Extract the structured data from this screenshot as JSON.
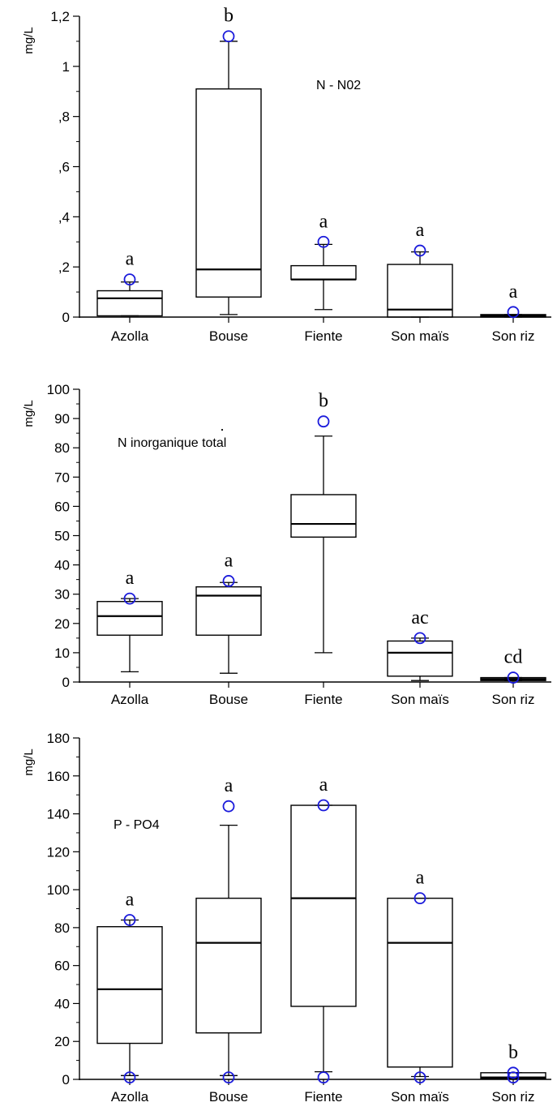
{
  "accent_color": "#1a1adb",
  "chart_data": [
    {
      "type": "box",
      "title": "N - N02",
      "ylabel": "mg/L",
      "ylim": [
        0,
        1.2
      ],
      "yticks": [
        0,
        0.2,
        0.4,
        0.6,
        0.8,
        1,
        1.2
      ],
      "ytick_labels": [
        "0",
        ",2",
        ",4",
        ",6",
        ",8",
        "1",
        "1,2"
      ],
      "categories": [
        "Azolla",
        "Bouse",
        "Fiente",
        "Son maïs",
        "Son riz"
      ],
      "boxes": [
        {
          "q1": 0.005,
          "median": 0.075,
          "q3": 0.105,
          "whisker_low": 0.005,
          "whisker_high": 0.14,
          "outliers": [
            0.15
          ],
          "group": "a"
        },
        {
          "q1": 0.08,
          "median": 0.19,
          "q3": 0.91,
          "whisker_low": 0.01,
          "whisker_high": 1.1,
          "outliers": [
            1.12
          ],
          "group": "b"
        },
        {
          "q1": 0.15,
          "median": 0.15,
          "q3": 0.205,
          "whisker_low": 0.03,
          "whisker_high": 0.29,
          "outliers": [
            0.3
          ],
          "group": "a"
        },
        {
          "q1": 0.0,
          "median": 0.03,
          "q3": 0.21,
          "whisker_low": 0.0,
          "whisker_high": 0.26,
          "outliers": [
            0.265
          ],
          "group": "a"
        },
        {
          "q1": 0.0,
          "median": 0.005,
          "q3": 0.01,
          "whisker_low": 0.0,
          "whisker_high": 0.01,
          "outliers": [
            0.02
          ],
          "group": "a"
        }
      ]
    },
    {
      "type": "box",
      "title": "N inorganique total",
      "ylabel": "mg/L",
      "ylim": [
        0,
        100
      ],
      "yticks": [
        0,
        10,
        20,
        30,
        40,
        50,
        60,
        70,
        80,
        90,
        100
      ],
      "ytick_labels": [
        "0",
        "10",
        "20",
        "30",
        "40",
        "50",
        "60",
        "70",
        "80",
        "90",
        "100"
      ],
      "categories": [
        "Azolla",
        "Bouse",
        "Fiente",
        "Son maïs",
        "Son riz"
      ],
      "boxes": [
        {
          "q1": 16,
          "median": 22.5,
          "q3": 27.5,
          "whisker_low": 3.5,
          "whisker_high": 28.5,
          "outliers": [
            28.5
          ],
          "group": "a"
        },
        {
          "q1": 16,
          "median": 29.5,
          "q3": 32.5,
          "whisker_low": 3,
          "whisker_high": 34,
          "outliers": [
            34.5
          ],
          "group": "a"
        },
        {
          "q1": 49.5,
          "median": 54,
          "q3": 64,
          "whisker_low": 10,
          "whisker_high": 84,
          "outliers": [
            89
          ],
          "group": "b"
        },
        {
          "q1": 2,
          "median": 10,
          "q3": 14,
          "whisker_low": 0.5,
          "whisker_high": 15,
          "outliers": [
            15
          ],
          "group": "ac"
        },
        {
          "q1": 0.5,
          "median": 1,
          "q3": 1.5,
          "whisker_low": 0.5,
          "whisker_high": 1.5,
          "outliers": [
            1.5
          ],
          "group": "cd"
        }
      ]
    },
    {
      "type": "box",
      "title": "P - PO4",
      "ylabel": "mg/L",
      "ylim": [
        0,
        180
      ],
      "yticks": [
        0,
        20,
        40,
        60,
        80,
        100,
        120,
        140,
        160,
        180
      ],
      "ytick_labels": [
        "0",
        "20",
        "40",
        "60",
        "80",
        "100",
        "120",
        "140",
        "160",
        "180"
      ],
      "categories": [
        "Azolla",
        "Bouse",
        "Fiente",
        "Son maïs",
        "Son riz"
      ],
      "boxes": [
        {
          "q1": 19,
          "median": 47.5,
          "q3": 80.5,
          "whisker_low": 2,
          "whisker_high": 84,
          "outliers": [
            84,
            1
          ],
          "group": "a"
        },
        {
          "q1": 24.5,
          "median": 72,
          "q3": 95.5,
          "whisker_low": 2,
          "whisker_high": 134,
          "outliers": [
            144,
            1
          ],
          "group": "a"
        },
        {
          "q1": 38.5,
          "median": 95.5,
          "q3": 144.5,
          "whisker_low": 4,
          "whisker_high": 144.5,
          "outliers": [
            144.5,
            1
          ],
          "group": "a"
        },
        {
          "q1": 6.5,
          "median": 72,
          "q3": 95.5,
          "whisker_low": 1.5,
          "whisker_high": 95.5,
          "outliers": [
            95.5,
            1
          ],
          "group": "a"
        },
        {
          "q1": 0.5,
          "median": 1,
          "q3": 3.5,
          "whisker_low": 0.5,
          "whisker_high": 3.5,
          "outliers": [
            3.5,
            1
          ],
          "group": "b"
        }
      ]
    }
  ]
}
